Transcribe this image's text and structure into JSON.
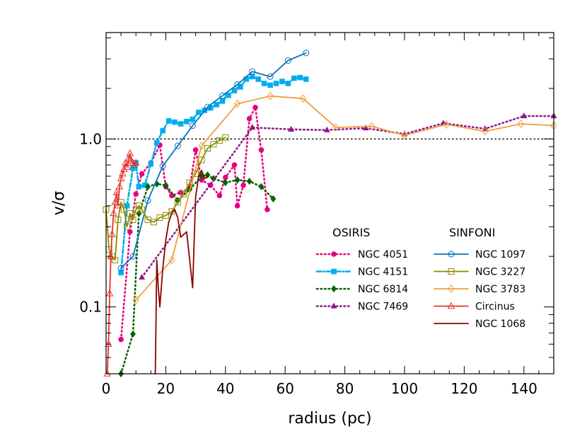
{
  "chart_data": {
    "type": "line",
    "title": "",
    "xlabel": "radius (pc)",
    "ylabel": "v/σ",
    "xlim": [
      0,
      150
    ],
    "ylim": [
      0.04,
      4.3
    ],
    "yscale": "log",
    "xticks": [
      "0",
      "20",
      "40",
      "60",
      "80",
      "100",
      "120",
      "140"
    ],
    "yticks": [
      "0.1",
      "1.0"
    ],
    "reference_line": {
      "y": 1.0,
      "style": "dotted"
    },
    "legend_groups": [
      "OSIRIS",
      "SINFONI"
    ],
    "series": [
      {
        "name": "NGC 4051",
        "group": "OSIRIS",
        "color": "#e6007e",
        "linestyle": "dotted",
        "marker": "circle-filled",
        "x": [
          5,
          8,
          10,
          12,
          15,
          18,
          20,
          22,
          25,
          28,
          30,
          32,
          35,
          38,
          40,
          43,
          44,
          46,
          48,
          50,
          52,
          54
        ],
        "y": [
          0.064,
          0.28,
          0.47,
          0.62,
          0.72,
          0.92,
          0.52,
          0.46,
          0.48,
          0.51,
          0.86,
          0.57,
          0.53,
          0.46,
          0.59,
          0.7,
          0.4,
          0.53,
          1.32,
          1.54,
          0.86,
          0.38
        ]
      },
      {
        "name": "NGC 4151",
        "group": "OSIRIS",
        "color": "#00aeef",
        "linestyle": "dash-dot",
        "marker": "square-filled",
        "x": [
          5,
          7,
          9,
          10,
          11,
          13,
          15,
          17,
          19,
          21,
          23,
          25,
          27,
          29,
          31,
          33,
          35,
          37,
          39,
          41,
          43,
          45,
          47,
          49,
          51,
          53,
          55,
          57,
          59,
          61,
          63,
          65,
          67
        ],
        "y": [
          0.16,
          0.4,
          0.67,
          0.72,
          0.52,
          0.53,
          0.71,
          0.95,
          1.12,
          1.28,
          1.26,
          1.23,
          1.27,
          1.31,
          1.44,
          1.48,
          1.53,
          1.6,
          1.68,
          1.82,
          1.94,
          2.04,
          2.27,
          2.35,
          2.27,
          2.14,
          2.09,
          2.14,
          2.2,
          2.14,
          2.3,
          2.32,
          2.27
        ]
      },
      {
        "name": "NGC 6814",
        "group": "OSIRIS",
        "color": "#006400",
        "linestyle": "dotted",
        "marker": "diamond-filled",
        "x": [
          5,
          9,
          11,
          14,
          17,
          20,
          24,
          28,
          32,
          34,
          36,
          40,
          44,
          48,
          52,
          56
        ],
        "y": [
          0.036,
          0.069,
          0.36,
          0.52,
          0.54,
          0.53,
          0.43,
          0.5,
          0.6,
          0.61,
          0.58,
          0.55,
          0.57,
          0.56,
          0.52,
          0.44
        ]
      },
      {
        "name": "NGC 7469",
        "group": "OSIRIS",
        "color": "#8b1a89",
        "linestyle": "dotted",
        "marker": "triangle-filled",
        "x": [
          12,
          49,
          62,
          74,
          87,
          100,
          113,
          127,
          140,
          150
        ],
        "y": [
          0.15,
          1.17,
          1.14,
          1.13,
          1.16,
          1.07,
          1.24,
          1.15,
          1.37,
          1.37
        ]
      },
      {
        "name": "NGC 1097",
        "group": "SINFONI",
        "color": "#0072bd",
        "linestyle": "solid",
        "marker": "circle-open",
        "x": [
          5,
          9,
          14,
          19,
          24,
          29,
          34,
          39,
          44,
          49,
          55,
          61,
          67
        ],
        "y": [
          0.17,
          0.2,
          0.43,
          0.69,
          0.91,
          1.2,
          1.55,
          1.81,
          2.11,
          2.52,
          2.35,
          2.93,
          3.25
        ]
      },
      {
        "name": "NGC 3227",
        "group": "SINFONI",
        "color": "#8b8b00",
        "linestyle": "solid",
        "marker": "square-open",
        "x": [
          0,
          1,
          2,
          3,
          4,
          5,
          6,
          7,
          8,
          9,
          10,
          11,
          12,
          14,
          16,
          18,
          20,
          22,
          24,
          26,
          28,
          30,
          32,
          34,
          36,
          38,
          40
        ],
        "y": [
          0.38,
          0.22,
          0.2,
          0.19,
          0.33,
          0.42,
          0.38,
          0.3,
          0.36,
          0.33,
          0.38,
          0.4,
          0.38,
          0.33,
          0.32,
          0.34,
          0.35,
          0.37,
          0.42,
          0.47,
          0.55,
          0.62,
          0.75,
          0.88,
          0.93,
          0.98,
          1.02
        ]
      },
      {
        "name": "NGC 3783",
        "group": "SINFONI",
        "color": "#f39c3d",
        "linestyle": "solid",
        "marker": "diamond-open",
        "x": [
          10,
          22,
          32,
          44,
          55,
          66,
          77,
          89,
          100,
          114,
          127,
          139,
          150
        ],
        "y": [
          0.11,
          0.19,
          0.91,
          1.62,
          1.8,
          1.74,
          1.17,
          1.19,
          1.05,
          1.22,
          1.11,
          1.23,
          1.2
        ]
      },
      {
        "name": "Circinus",
        "group": "SINFONI",
        "color": "#e8302c",
        "linestyle": "solid",
        "marker": "triangle-open",
        "x": [
          0.4,
          0.8,
          1.2,
          1.6,
          2.0,
          2.5,
          3.0,
          3.5,
          4.0,
          4.5,
          5.0,
          5.5,
          6.0,
          6.5,
          7.0,
          7.5,
          8.0,
          8.5,
          9.0,
          9.5,
          10.0
        ],
        "y": [
          0.04,
          0.06,
          0.12,
          0.2,
          0.27,
          0.36,
          0.42,
          0.48,
          0.4,
          0.52,
          0.58,
          0.62,
          0.66,
          0.72,
          0.68,
          0.76,
          0.82,
          0.74,
          0.72,
          0.7,
          0.72
        ]
      },
      {
        "name": "NGC 1068",
        "group": "SINFONI",
        "color": "#8b0000",
        "linestyle": "solid",
        "marker": "none",
        "x": [
          16.5,
          17,
          17.5,
          18,
          19,
          20,
          21,
          22,
          23,
          24,
          25,
          26,
          27,
          28,
          29,
          30,
          31,
          32,
          33,
          34
        ],
        "y": [
          0.04,
          0.19,
          0.13,
          0.1,
          0.17,
          0.25,
          0.32,
          0.36,
          0.38,
          0.34,
          0.26,
          0.27,
          0.28,
          0.19,
          0.13,
          0.45,
          0.6,
          0.65,
          0.58,
          0.6
        ]
      }
    ]
  }
}
